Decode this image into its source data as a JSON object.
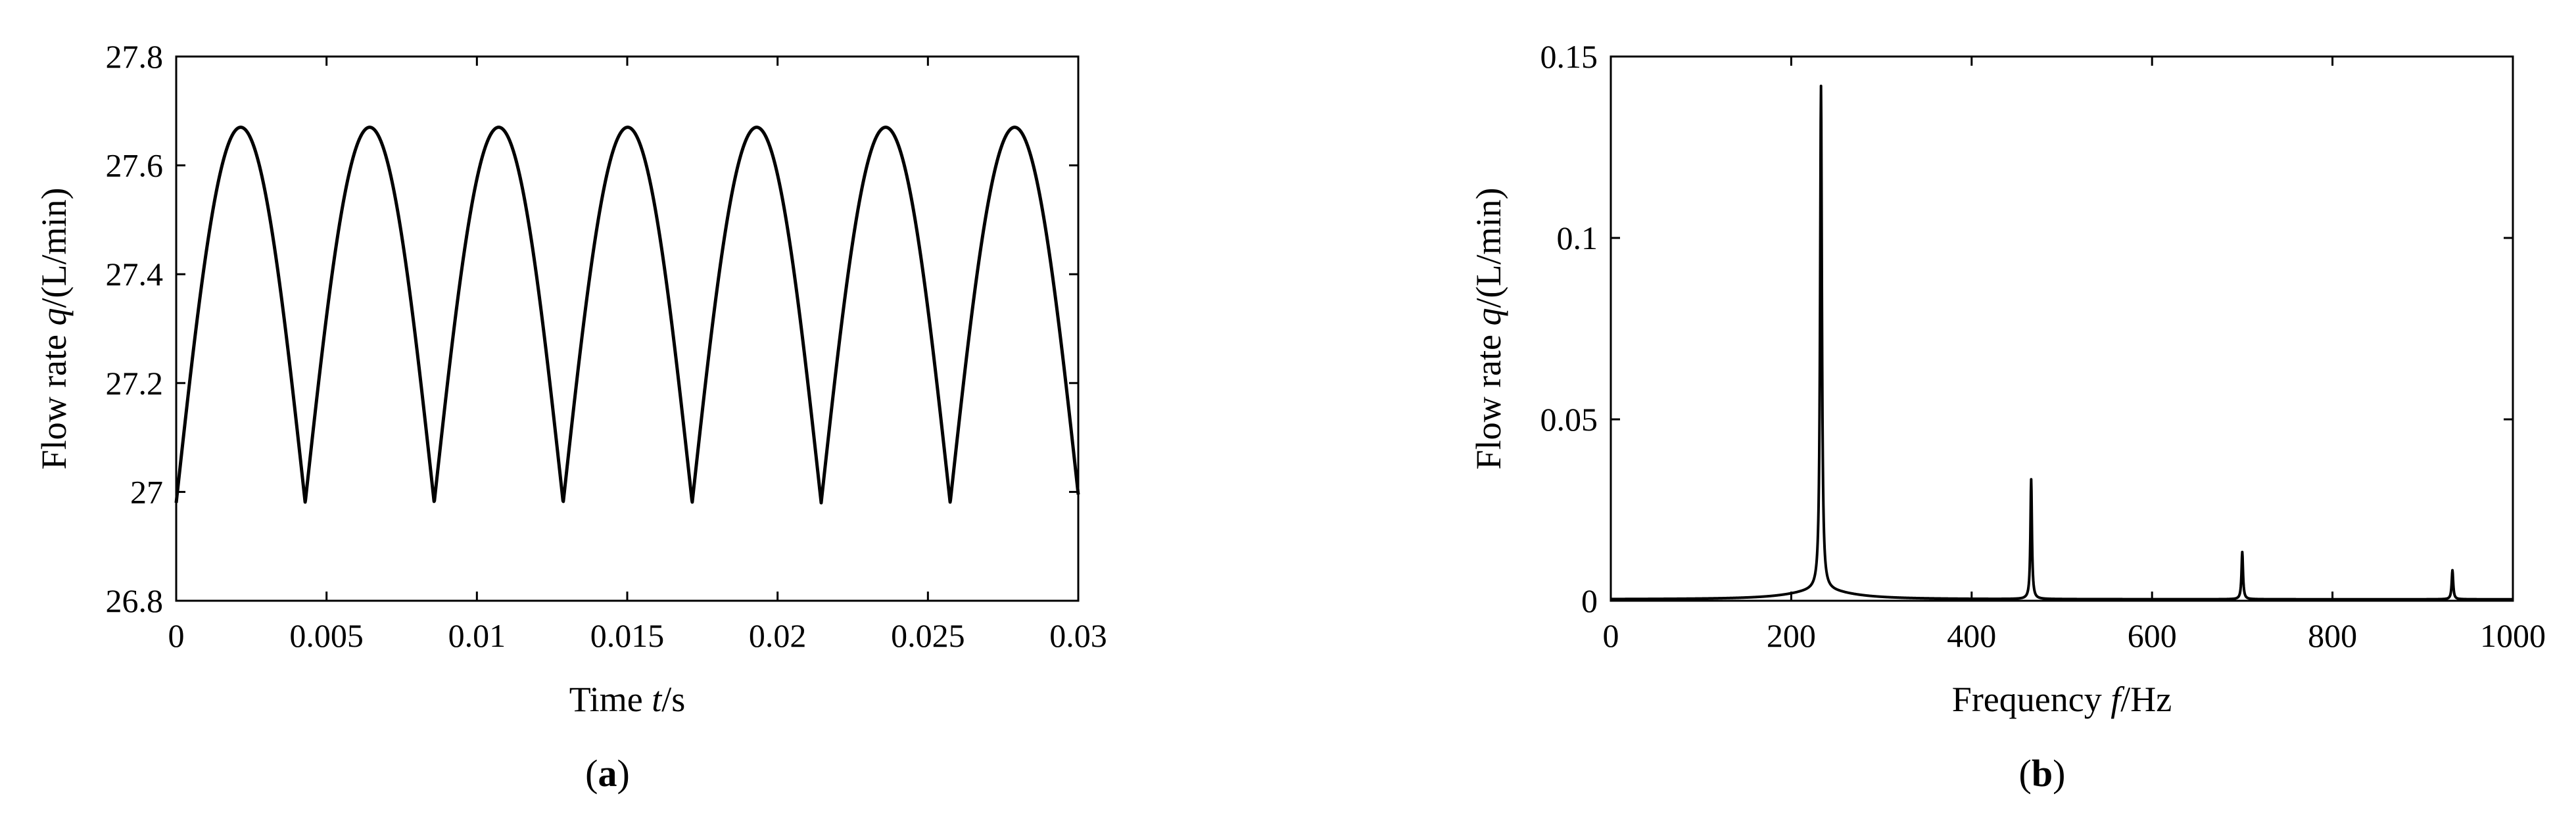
{
  "chart_data": [
    {
      "type": "line",
      "panel_label": {
        "open": "(",
        "letter": "a",
        "close": ")"
      },
      "xlabel": {
        "prefix": "Time ",
        "var": "t",
        "suffix": "/s"
      },
      "ylabel": {
        "prefix": "Flow rate ",
        "var": "q",
        "suffix": "/(L/min)"
      },
      "xlim": [
        0,
        0.03
      ],
      "ylim": [
        26.8,
        27.8
      ],
      "xticks": [
        0,
        0.005,
        0.01,
        0.015,
        0.02,
        0.025,
        0.03
      ],
      "xtick_labels": [
        "0",
        "0.005",
        "0.01",
        "0.015",
        "0.02",
        "0.025",
        "0.03"
      ],
      "yticks": [
        26.8,
        27,
        27.2,
        27.4,
        27.6,
        27.8
      ],
      "ytick_labels": [
        "26.8",
        "27",
        "27.2",
        "27.4",
        "27.6",
        "27.8"
      ],
      "series": [
        {
          "description_free": true,
          "form": "rectified-sine",
          "min": 26.98,
          "max": 27.67,
          "period": 0.00429,
          "minima_t": [
            0,
            0.00429,
            0.00857,
            0.01286,
            0.01714,
            0.02143,
            0.02571,
            0.03
          ]
        }
      ],
      "grid": false
    },
    {
      "type": "line",
      "panel_label": {
        "open": "(",
        "letter": "b",
        "close": ")"
      },
      "xlabel": {
        "prefix": "Frequency ",
        "var": "f",
        "suffix": "/Hz"
      },
      "ylabel": {
        "prefix": "Flow rate ",
        "var": "q",
        "suffix": "/(L/min)"
      },
      "xlim": [
        0,
        1000
      ],
      "ylim": [
        0,
        0.15
      ],
      "xticks": [
        0,
        200,
        400,
        600,
        800,
        1000
      ],
      "xtick_labels": [
        "0",
        "200",
        "400",
        "600",
        "800",
        "1000"
      ],
      "yticks": [
        0,
        0.05,
        0.1,
        0.15
      ],
      "ytick_labels": [
        "0",
        "0.05",
        "0.1",
        "0.15"
      ],
      "peaks": [
        {
          "f": 233,
          "amp": 0.139
        },
        {
          "f": 466,
          "amp": 0.033
        },
        {
          "f": 700,
          "amp": 0.013
        },
        {
          "f": 933,
          "amp": 0.008
        }
      ],
      "grid": false
    }
  ]
}
